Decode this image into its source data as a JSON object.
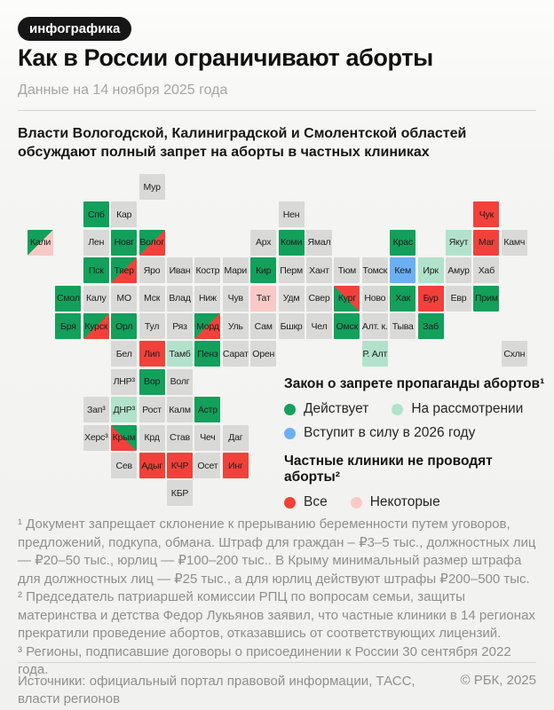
{
  "badge": "инфографика",
  "title": "Как в России ограничивают аборты",
  "date_note": "Данные на 14 ноября 2025 года",
  "intro": "Власти Вологодской, Калиниградской и Смолентской областей обсуждают полный запрет на аборты в частных клиниках",
  "colors": {
    "green": "#12a05a",
    "mint": "#b2e2cb",
    "blue": "#6cb0f4",
    "red": "#f2413a",
    "pink": "#f9c9c7",
    "gray": "#d9d9d7",
    "badge_bg": "#161616"
  },
  "legend": {
    "law": {
      "title": "Закон о запрете пропаганды абортов¹",
      "items": [
        {
          "label": "Действует",
          "color_key": "green"
        },
        {
          "label": "На рассмотрении",
          "color_key": "mint"
        },
        {
          "label": "Вступит в силу в 2026 году",
          "color_key": "blue"
        }
      ]
    },
    "clinics": {
      "title": "Частные клиники не проводят аборты²",
      "items": [
        {
          "label": "Все",
          "color_key": "red"
        },
        {
          "label": "Некоторые",
          "color_key": "pink"
        }
      ]
    }
  },
  "map": {
    "tiles": [
      {
        "label": "Мур",
        "col": 4,
        "row": 0,
        "fill": "gray"
      },
      {
        "label": "Спб",
        "col": 2,
        "row": 1,
        "fill": "green"
      },
      {
        "label": "Кар",
        "col": 3,
        "row": 1,
        "fill": "gray"
      },
      {
        "label": "Нен",
        "col": 9,
        "row": 1,
        "fill": "gray"
      },
      {
        "label": "Чук",
        "col": 16,
        "row": 1,
        "fill": "red"
      },
      {
        "label": "Кали",
        "col": 0,
        "row": 2,
        "fill": "gp_tl"
      },
      {
        "label": "Лен",
        "col": 2,
        "row": 2,
        "fill": "gray"
      },
      {
        "label": "Новг",
        "col": 3,
        "row": 2,
        "fill": "green"
      },
      {
        "label": "Волог",
        "col": 4,
        "row": 2,
        "fill": "gr_tl"
      },
      {
        "label": "Арх",
        "col": 8,
        "row": 2,
        "fill": "gray"
      },
      {
        "label": "Коми",
        "col": 9,
        "row": 2,
        "fill": "green"
      },
      {
        "label": "Ямал",
        "col": 10,
        "row": 2,
        "fill": "gray"
      },
      {
        "label": "Крас",
        "col": 13,
        "row": 2,
        "fill": "green"
      },
      {
        "label": "Якут",
        "col": 15,
        "row": 2,
        "fill": "mint"
      },
      {
        "label": "Маг",
        "col": 16,
        "row": 2,
        "fill": "red"
      },
      {
        "label": "Камч",
        "col": 17,
        "row": 2,
        "fill": "gray"
      },
      {
        "label": "Пск",
        "col": 2,
        "row": 3,
        "fill": "green"
      },
      {
        "label": "Твер",
        "col": 3,
        "row": 3,
        "fill": "gr_tl"
      },
      {
        "label": "Яро",
        "col": 4,
        "row": 3,
        "fill": "gray"
      },
      {
        "label": "Иван",
        "col": 5,
        "row": 3,
        "fill": "gray"
      },
      {
        "label": "Костр",
        "col": 6,
        "row": 3,
        "fill": "gray"
      },
      {
        "label": "Мари",
        "col": 7,
        "row": 3,
        "fill": "gray"
      },
      {
        "label": "Кир",
        "col": 8,
        "row": 3,
        "fill": "green"
      },
      {
        "label": "Перм",
        "col": 9,
        "row": 3,
        "fill": "gray"
      },
      {
        "label": "Хант",
        "col": 10,
        "row": 3,
        "fill": "gray"
      },
      {
        "label": "Тюм",
        "col": 11,
        "row": 3,
        "fill": "gray"
      },
      {
        "label": "Томск",
        "col": 12,
        "row": 3,
        "fill": "gray"
      },
      {
        "label": "Кем",
        "col": 13,
        "row": 3,
        "fill": "blue"
      },
      {
        "label": "Ирк",
        "col": 14,
        "row": 3,
        "fill": "mint"
      },
      {
        "label": "Амур",
        "col": 15,
        "row": 3,
        "fill": "gray"
      },
      {
        "label": "Хаб",
        "col": 16,
        "row": 3,
        "fill": "gray"
      },
      {
        "label": "Смол",
        "col": 1,
        "row": 4,
        "fill": "green"
      },
      {
        "label": "Калу",
        "col": 2,
        "row": 4,
        "fill": "gray"
      },
      {
        "label": "МО",
        "col": 3,
        "row": 4,
        "fill": "gray"
      },
      {
        "label": "Мск",
        "col": 4,
        "row": 4,
        "fill": "gray"
      },
      {
        "label": "Влад",
        "col": 5,
        "row": 4,
        "fill": "gray"
      },
      {
        "label": "Ниж",
        "col": 6,
        "row": 4,
        "fill": "gray"
      },
      {
        "label": "Чув",
        "col": 7,
        "row": 4,
        "fill": "gray"
      },
      {
        "label": "Тат",
        "col": 8,
        "row": 4,
        "fill": "pink"
      },
      {
        "label": "Удм",
        "col": 9,
        "row": 4,
        "fill": "gray"
      },
      {
        "label": "Свер",
        "col": 10,
        "row": 4,
        "fill": "gray"
      },
      {
        "label": "Кург",
        "col": 11,
        "row": 4,
        "fill": "gr_bl"
      },
      {
        "label": "Ново",
        "col": 12,
        "row": 4,
        "fill": "gray"
      },
      {
        "label": "Хак",
        "col": 13,
        "row": 4,
        "fill": "green"
      },
      {
        "label": "Бур",
        "col": 14,
        "row": 4,
        "fill": "red"
      },
      {
        "label": "Евр",
        "col": 15,
        "row": 4,
        "fill": "gray"
      },
      {
        "label": "Прим",
        "col": 16,
        "row": 4,
        "fill": "green"
      },
      {
        "label": "Бря",
        "col": 1,
        "row": 5,
        "fill": "green"
      },
      {
        "label": "Курск",
        "col": 2,
        "row": 5,
        "fill": "gr_tl"
      },
      {
        "label": "Орл",
        "col": 3,
        "row": 5,
        "fill": "green"
      },
      {
        "label": "Тул",
        "col": 4,
        "row": 5,
        "fill": "gray"
      },
      {
        "label": "Ряз",
        "col": 5,
        "row": 5,
        "fill": "gray"
      },
      {
        "label": "Морд",
        "col": 6,
        "row": 5,
        "fill": "gr_tl"
      },
      {
        "label": "Уль",
        "col": 7,
        "row": 5,
        "fill": "gray"
      },
      {
        "label": "Сам",
        "col": 8,
        "row": 5,
        "fill": "gray"
      },
      {
        "label": "Бшкр",
        "col": 9,
        "row": 5,
        "fill": "gray"
      },
      {
        "label": "Чел",
        "col": 10,
        "row": 5,
        "fill": "gray"
      },
      {
        "label": "Омск",
        "col": 11,
        "row": 5,
        "fill": "green"
      },
      {
        "label": "Алт. к.",
        "col": 12,
        "row": 5,
        "fill": "gray"
      },
      {
        "label": "Тыва",
        "col": 13,
        "row": 5,
        "fill": "gray"
      },
      {
        "label": "Заб",
        "col": 14,
        "row": 5,
        "fill": "green"
      },
      {
        "label": "Бел",
        "col": 3,
        "row": 6,
        "fill": "gray"
      },
      {
        "label": "Лип",
        "col": 4,
        "row": 6,
        "fill": "red"
      },
      {
        "label": "Тамб",
        "col": 5,
        "row": 6,
        "fill": "mint"
      },
      {
        "label": "Пенз",
        "col": 6,
        "row": 6,
        "fill": "green"
      },
      {
        "label": "Сарат",
        "col": 7,
        "row": 6,
        "fill": "gray"
      },
      {
        "label": "Орен",
        "col": 8,
        "row": 6,
        "fill": "gray"
      },
      {
        "label": "Р. Алт",
        "col": 12,
        "row": 6,
        "fill": "mint"
      },
      {
        "label": "Схлн",
        "col": 17,
        "row": 6,
        "fill": "gray"
      },
      {
        "label": "ЛНР³",
        "col": 3,
        "row": 7,
        "fill": "gray"
      },
      {
        "label": "Вор",
        "col": 4,
        "row": 7,
        "fill": "green"
      },
      {
        "label": "Волг",
        "col": 5,
        "row": 7,
        "fill": "gray"
      },
      {
        "label": "Зап³",
        "col": 2,
        "row": 8,
        "fill": "gray"
      },
      {
        "label": "ДНР³",
        "col": 3,
        "row": 8,
        "fill": "mint"
      },
      {
        "label": "Рост",
        "col": 4,
        "row": 8,
        "fill": "gray"
      },
      {
        "label": "Калм",
        "col": 5,
        "row": 8,
        "fill": "gray"
      },
      {
        "label": "Астр",
        "col": 6,
        "row": 8,
        "fill": "green"
      },
      {
        "label": "Херс³",
        "col": 2,
        "row": 9,
        "fill": "gray"
      },
      {
        "label": "Крым",
        "col": 3,
        "row": 9,
        "fill": "gr_tr"
      },
      {
        "label": "Крд",
        "col": 4,
        "row": 9,
        "fill": "gray"
      },
      {
        "label": "Став",
        "col": 5,
        "row": 9,
        "fill": "gray"
      },
      {
        "label": "Чеч",
        "col": 6,
        "row": 9,
        "fill": "gray"
      },
      {
        "label": "Даг",
        "col": 7,
        "row": 9,
        "fill": "gray"
      },
      {
        "label": "Сев",
        "col": 3,
        "row": 10,
        "fill": "gray"
      },
      {
        "label": "Адыг",
        "col": 4,
        "row": 10,
        "fill": "red"
      },
      {
        "label": "КЧР",
        "col": 5,
        "row": 10,
        "fill": "red"
      },
      {
        "label": "Осет",
        "col": 6,
        "row": 10,
        "fill": "gray"
      },
      {
        "label": "Инг",
        "col": 7,
        "row": 10,
        "fill": "red"
      },
      {
        "label": "КБР",
        "col": 5,
        "row": 11,
        "fill": "gray"
      }
    ]
  },
  "footnotes": [
    "¹ Документ запрещает склонение к прерыванию беременности путем уговоров, предложений, подкупа, обмана. Штраф для граждан – ₽3–5 тыс., должностных лиц — ₽20–50 тыс., юрлиц — ₽100–200 тыс.. В Крыму минимальный размер штрафа для должностных лиц — ₽25 тыс., а для юрлиц действуют штрафы ₽200–500 тыс.",
    "² Председатель патриаршей комиссии РПЦ по вопросам семьи, защиты материнства и детства Федор Лукьянов заявил, что частные клиники в 14 регионах прекратили проведение абортов, отказавшись от соответствующих лицензий.",
    "³ Регионы, подписавшие договоры о присоединении к России 30 сентября 2022 года."
  ],
  "sources": "Источники: официальный портал правовой информации, ТАСС, власти регионов",
  "copyright": "© РБК, 2025"
}
